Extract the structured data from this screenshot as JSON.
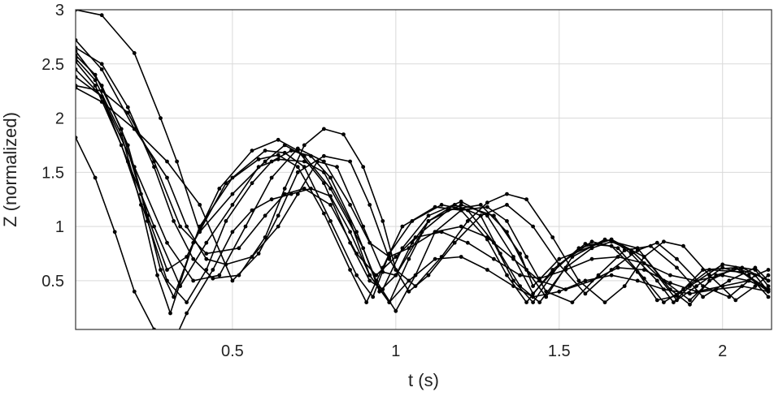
{
  "chart_data": {
    "type": "line",
    "title": "",
    "xlabel": "t (s)",
    "ylabel": "Z (normalized)",
    "xlim": [
      0.02,
      2.15
    ],
    "ylim": [
      0.05,
      3.0
    ],
    "xticks": [
      0.5,
      1,
      1.5,
      2
    ],
    "xtick_labels": [
      "0.5",
      "1",
      "1.5",
      "2"
    ],
    "yticks": [
      0.5,
      1,
      1.5,
      2,
      2.5,
      3
    ],
    "ytick_labels": [
      "0.5",
      "1",
      "1.5",
      "2",
      "2.5",
      "3"
    ],
    "grid": true,
    "legend": "none",
    "series_color": "#000000",
    "series": [
      {
        "x": [
          0.02,
          0.1,
          0.2,
          0.28,
          0.33,
          0.4,
          0.5,
          0.6,
          0.66,
          0.72,
          0.8,
          0.9,
          0.95,
          1.0,
          1.05,
          1.1,
          1.2,
          1.3,
          1.38,
          1.42,
          1.5,
          1.6,
          1.66,
          1.72,
          1.8,
          1.85,
          1.9,
          2.0,
          2.1,
          2.14
        ],
        "y": [
          3.0,
          2.95,
          2.6,
          2.0,
          1.6,
          0.95,
          1.3,
          1.6,
          1.75,
          1.65,
          1.35,
          0.8,
          0.4,
          0.55,
          0.85,
          1.05,
          1.2,
          1.1,
          0.75,
          0.45,
          0.7,
          0.82,
          0.88,
          0.75,
          0.5,
          0.3,
          0.45,
          0.65,
          0.6,
          0.45
        ]
      },
      {
        "x": [
          0.02,
          0.1,
          0.18,
          0.24,
          0.3,
          0.36,
          0.46,
          0.56,
          0.64,
          0.7,
          0.78,
          0.86,
          0.92,
          0.96,
          1.02,
          1.1,
          1.2,
          1.28,
          1.36,
          1.42,
          1.48,
          1.56,
          1.66,
          1.76,
          1.84,
          1.9,
          1.96,
          2.04,
          2.1,
          2.14
        ],
        "y": [
          2.62,
          2.3,
          1.75,
          1.1,
          0.6,
          0.72,
          1.35,
          1.7,
          1.8,
          1.7,
          1.4,
          0.85,
          0.5,
          0.42,
          0.8,
          1.1,
          1.23,
          1.1,
          0.72,
          0.38,
          0.58,
          0.8,
          0.88,
          0.72,
          0.42,
          0.28,
          0.5,
          0.62,
          0.55,
          0.4
        ]
      },
      {
        "x": [
          0.02,
          0.08,
          0.16,
          0.22,
          0.28,
          0.32,
          0.4,
          0.5,
          0.6,
          0.66,
          0.72,
          0.8,
          0.88,
          0.93,
          0.98,
          1.05,
          1.14,
          1.22,
          1.3,
          1.36,
          1.42,
          1.5,
          1.6,
          1.68,
          1.76,
          1.82,
          1.88,
          1.96,
          2.06,
          2.14
        ],
        "y": [
          2.58,
          2.4,
          1.9,
          1.3,
          0.6,
          0.35,
          1.0,
          1.45,
          1.7,
          1.68,
          1.55,
          1.05,
          0.55,
          0.35,
          0.75,
          1.05,
          1.2,
          1.15,
          0.85,
          0.5,
          0.3,
          0.65,
          0.86,
          0.8,
          0.52,
          0.3,
          0.42,
          0.6,
          0.58,
          0.42
        ]
      },
      {
        "x": [
          0.02,
          0.08,
          0.16,
          0.22,
          0.27,
          0.31,
          0.38,
          0.48,
          0.58,
          0.64,
          0.7,
          0.78,
          0.86,
          0.91,
          0.96,
          1.02,
          1.12,
          1.2,
          1.28,
          1.34,
          1.4,
          1.48,
          1.58,
          1.66,
          1.74,
          1.8,
          1.86,
          1.94,
          2.04,
          2.14
        ],
        "y": [
          2.55,
          2.35,
          1.85,
          1.2,
          0.55,
          0.2,
          0.85,
          1.4,
          1.62,
          1.66,
          1.55,
          1.12,
          0.6,
          0.3,
          0.62,
          1.0,
          1.18,
          1.15,
          0.88,
          0.55,
          0.3,
          0.6,
          0.84,
          0.82,
          0.58,
          0.32,
          0.36,
          0.6,
          0.62,
          0.4
        ]
      },
      {
        "x": [
          0.02,
          0.1,
          0.18,
          0.26,
          0.34,
          0.42,
          0.52,
          0.6,
          0.66,
          0.72,
          0.8,
          0.88,
          0.94,
          1.0,
          1.06,
          1.14,
          1.22,
          1.3,
          1.38,
          1.44,
          1.52,
          1.6,
          1.68,
          1.76,
          1.84,
          1.92,
          2.0,
          2.08,
          2.14
        ],
        "y": [
          2.3,
          2.25,
          2.05,
          1.6,
          1.0,
          0.75,
          0.8,
          1.1,
          1.3,
          1.35,
          1.2,
          0.75,
          0.55,
          0.72,
          0.9,
          0.95,
          0.85,
          0.7,
          0.55,
          0.52,
          0.6,
          0.7,
          0.72,
          0.66,
          0.55,
          0.5,
          0.55,
          0.5,
          0.42
        ]
      },
      {
        "x": [
          0.02,
          0.1,
          0.2,
          0.3,
          0.36,
          0.42,
          0.48,
          0.56,
          0.64,
          0.7,
          0.76,
          0.82,
          0.9,
          0.96,
          1.0,
          1.08,
          1.16,
          1.26,
          1.34,
          1.4,
          1.46,
          1.54,
          1.64,
          1.74,
          1.82,
          1.9,
          1.98,
          2.06,
          2.14
        ],
        "y": [
          2.72,
          2.45,
          1.9,
          1.45,
          1.0,
          0.7,
          0.65,
          0.72,
          1.0,
          1.3,
          1.6,
          1.55,
          1.0,
          0.58,
          0.55,
          0.95,
          1.15,
          1.2,
          0.95,
          0.6,
          0.35,
          0.72,
          0.88,
          0.8,
          0.5,
          0.32,
          0.55,
          0.62,
          0.5
        ]
      },
      {
        "x": [
          0.02,
          0.1,
          0.18,
          0.26,
          0.34,
          0.42,
          0.5,
          0.58,
          0.64,
          0.72,
          0.78,
          0.86,
          0.92,
          0.98,
          1.04,
          1.1,
          1.18,
          1.26,
          1.32,
          1.38,
          1.44,
          1.52,
          1.6,
          1.66,
          1.72,
          1.8,
          1.86,
          1.92,
          2.0,
          2.08,
          2.14
        ],
        "y": [
          2.38,
          2.2,
          1.6,
          1.0,
          0.45,
          0.85,
          1.2,
          1.55,
          1.62,
          1.6,
          1.5,
          1.05,
          0.55,
          0.3,
          0.7,
          1.05,
          1.2,
          1.1,
          0.75,
          0.45,
          0.3,
          0.62,
          0.8,
          0.86,
          0.78,
          0.55,
          0.32,
          0.45,
          0.62,
          0.55,
          0.35
        ]
      },
      {
        "x": [
          0.02,
          0.08,
          0.14,
          0.2,
          0.26,
          0.3,
          0.36,
          0.44,
          0.5,
          0.56,
          0.62,
          0.68,
          0.74,
          0.8,
          0.86,
          0.92,
          0.98,
          1.04,
          1.12,
          1.2,
          1.28,
          1.36,
          1.42,
          1.5,
          1.58,
          1.66,
          1.74,
          1.82,
          1.9,
          1.98,
          2.06,
          2.14
        ],
        "y": [
          1.82,
          1.45,
          0.95,
          0.4,
          0.05,
          -0.2,
          0.2,
          0.6,
          0.95,
          1.15,
          1.25,
          1.3,
          1.35,
          1.28,
          0.95,
          0.55,
          0.3,
          0.5,
          0.7,
          0.72,
          0.6,
          0.45,
          0.35,
          0.4,
          0.5,
          0.55,
          0.5,
          0.42,
          0.38,
          0.42,
          0.45,
          0.4
        ]
      },
      {
        "x": [
          0.02,
          0.1,
          0.18,
          0.26,
          0.32,
          0.38,
          0.44,
          0.52,
          0.6,
          0.66,
          0.72,
          0.78,
          0.84,
          0.9,
          0.96,
          1.0,
          1.06,
          1.14,
          1.22,
          1.28,
          1.34,
          1.4,
          1.48,
          1.56,
          1.64,
          1.7,
          1.76,
          1.82,
          1.88,
          1.96,
          2.04,
          2.1,
          2.14
        ],
        "y": [
          2.65,
          2.5,
          2.1,
          1.55,
          1.05,
          0.7,
          0.52,
          0.55,
          0.9,
          1.35,
          1.75,
          1.9,
          1.85,
          1.55,
          1.05,
          0.6,
          0.45,
          0.72,
          1.05,
          1.22,
          1.3,
          1.25,
          0.9,
          0.5,
          0.3,
          0.45,
          0.72,
          0.86,
          0.82,
          0.55,
          0.32,
          0.45,
          0.55
        ]
      },
      {
        "x": [
          0.02,
          0.08,
          0.16,
          0.24,
          0.3,
          0.36,
          0.42,
          0.48,
          0.56,
          0.62,
          0.68,
          0.74,
          0.8,
          0.88,
          0.94,
          1.0,
          1.06,
          1.12,
          1.2,
          1.28,
          1.34,
          1.4,
          1.46,
          1.54,
          1.62,
          1.7,
          1.78,
          1.86,
          1.94,
          2.02,
          2.1,
          2.14
        ],
        "y": [
          2.52,
          2.3,
          1.75,
          1.05,
          0.5,
          0.3,
          0.6,
          1.05,
          1.4,
          1.6,
          1.7,
          1.65,
          1.45,
          0.95,
          0.5,
          0.22,
          0.55,
          0.95,
          1.15,
          1.18,
          1.05,
          0.72,
          0.4,
          0.3,
          0.55,
          0.78,
          0.82,
          0.62,
          0.35,
          0.5,
          0.62,
          0.5
        ]
      },
      {
        "x": [
          0.02,
          0.1,
          0.2,
          0.3,
          0.4,
          0.5,
          0.58,
          0.64,
          0.7,
          0.78,
          0.86,
          0.92,
          0.98,
          1.04,
          1.1,
          1.18,
          1.26,
          1.34,
          1.42,
          1.5,
          1.58,
          1.66,
          1.74,
          1.8,
          1.86,
          1.94,
          2.02,
          2.1,
          2.14
        ],
        "y": [
          2.28,
          2.15,
          1.9,
          1.6,
          1.2,
          0.5,
          0.75,
          1.1,
          1.5,
          1.65,
          1.6,
          1.2,
          0.7,
          0.4,
          0.55,
          0.85,
          1.1,
          1.2,
          1.0,
          0.65,
          0.38,
          0.6,
          0.78,
          0.85,
          0.7,
          0.45,
          0.35,
          0.55,
          0.6
        ]
      },
      {
        "x": [
          0.02,
          0.1,
          0.2,
          0.3,
          0.38,
          0.46,
          0.54,
          0.62,
          0.7,
          0.78,
          0.86,
          0.92,
          0.98,
          1.04,
          1.12,
          1.2,
          1.28,
          1.36,
          1.44,
          1.52,
          1.6,
          1.68,
          1.76,
          1.84,
          1.92,
          2.0,
          2.08,
          2.14
        ],
        "y": [
          2.45,
          2.2,
          1.55,
          0.85,
          0.5,
          0.55,
          1.0,
          1.45,
          1.72,
          1.6,
          1.2,
          0.85,
          0.72,
          0.8,
          0.95,
          1.0,
          0.9,
          0.7,
          0.5,
          0.42,
          0.5,
          0.62,
          0.6,
          0.48,
          0.4,
          0.45,
          0.5,
          0.42
        ]
      }
    ]
  }
}
